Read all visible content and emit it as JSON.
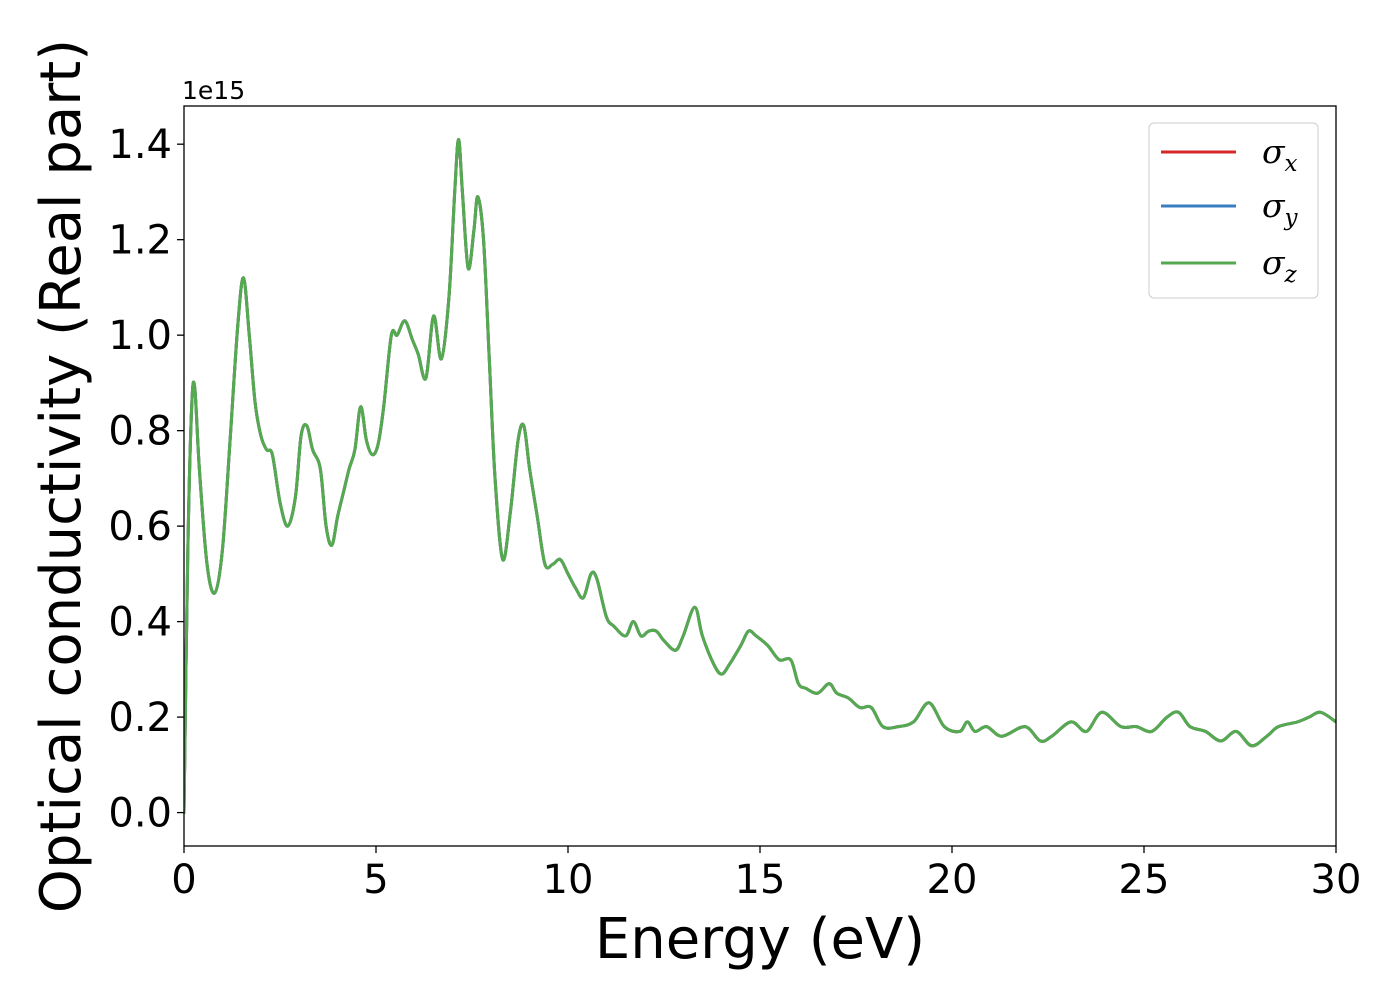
{
  "chart_data": {
    "type": "line",
    "xlabel": "Energy (eV)",
    "ylabel": "Optical conductivity (Real part)",
    "y_offset_text": "1e15",
    "xlim": [
      0,
      30
    ],
    "ylim": [
      -0.07,
      1.48
    ],
    "x_ticks": [
      0,
      5,
      10,
      15,
      20,
      25,
      30
    ],
    "x_tick_labels": [
      "0",
      "5",
      "10",
      "15",
      "20",
      "25",
      "30"
    ],
    "y_ticks": [
      0.0,
      0.2,
      0.4,
      0.6,
      0.8,
      1.0,
      1.2,
      1.4
    ],
    "y_tick_labels": [
      "0.0",
      "0.2",
      "0.4",
      "0.6",
      "0.8",
      "1.0",
      "1.2",
      "1.4"
    ],
    "grid": false,
    "legend_position": "top-right",
    "series": [
      {
        "name": "σx",
        "symbol": "σ",
        "subscript": "x",
        "color": "#d62728"
      },
      {
        "name": "σy",
        "symbol": "σ",
        "subscript": "y",
        "color": "#3a7dc0"
      },
      {
        "name": "σz",
        "symbol": "σ",
        "subscript": "z",
        "color": "#55aa50"
      }
    ],
    "x": [
      0,
      0.1,
      0.2,
      0.28,
      0.4,
      0.6,
      0.8,
      1.0,
      1.2,
      1.4,
      1.55,
      1.7,
      1.85,
      2.0,
      2.15,
      2.3,
      2.5,
      2.7,
      2.9,
      3.05,
      3.2,
      3.35,
      3.55,
      3.7,
      3.85,
      4.0,
      4.15,
      4.3,
      4.45,
      4.6,
      4.75,
      4.9,
      5.05,
      5.2,
      5.4,
      5.55,
      5.75,
      5.95,
      6.1,
      6.3,
      6.5,
      6.7,
      6.9,
      7.05,
      7.15,
      7.25,
      7.4,
      7.55,
      7.65,
      7.8,
      7.95,
      8.1,
      8.3,
      8.5,
      8.7,
      8.85,
      9.0,
      9.2,
      9.4,
      9.6,
      9.8,
      10.0,
      10.2,
      10.4,
      10.6,
      10.75,
      11.0,
      11.2,
      11.5,
      11.7,
      11.9,
      12.1,
      12.3,
      12.5,
      12.8,
      13.0,
      13.3,
      13.5,
      13.8,
      14.0,
      14.2,
      14.5,
      14.7,
      14.9,
      15.2,
      15.5,
      15.8,
      16.0,
      16.2,
      16.5,
      16.8,
      17.0,
      17.3,
      17.6,
      17.9,
      18.2,
      18.6,
      19.0,
      19.4,
      19.8,
      20.2,
      20.4,
      20.6,
      20.9,
      21.3,
      21.9,
      22.3,
      22.6,
      23.1,
      23.5,
      23.9,
      24.4,
      24.8,
      25.2,
      25.6,
      25.9,
      26.2,
      26.6,
      27.0,
      27.4,
      27.8,
      28.2,
      28.5,
      29.0,
      29.3,
      29.6,
      30.0
    ],
    "y": [
      0.0,
      0.55,
      0.85,
      0.89,
      0.72,
      0.52,
      0.46,
      0.55,
      0.78,
      1.02,
      1.12,
      1.0,
      0.86,
      0.79,
      0.76,
      0.75,
      0.65,
      0.6,
      0.66,
      0.79,
      0.81,
      0.76,
      0.72,
      0.6,
      0.56,
      0.62,
      0.67,
      0.72,
      0.76,
      0.85,
      0.78,
      0.75,
      0.77,
      0.85,
      1.0,
      1.0,
      1.03,
      0.99,
      0.96,
      0.91,
      1.04,
      0.95,
      1.08,
      1.3,
      1.41,
      1.3,
      1.14,
      1.22,
      1.29,
      1.2,
      0.95,
      0.7,
      0.53,
      0.63,
      0.78,
      0.81,
      0.72,
      0.62,
      0.52,
      0.52,
      0.53,
      0.5,
      0.47,
      0.45,
      0.5,
      0.49,
      0.41,
      0.39,
      0.37,
      0.4,
      0.37,
      0.38,
      0.38,
      0.36,
      0.34,
      0.37,
      0.43,
      0.37,
      0.31,
      0.29,
      0.31,
      0.35,
      0.38,
      0.37,
      0.35,
      0.32,
      0.32,
      0.27,
      0.26,
      0.25,
      0.27,
      0.25,
      0.24,
      0.22,
      0.22,
      0.18,
      0.18,
      0.19,
      0.23,
      0.18,
      0.17,
      0.19,
      0.17,
      0.18,
      0.16,
      0.18,
      0.15,
      0.16,
      0.19,
      0.17,
      0.21,
      0.18,
      0.18,
      0.17,
      0.2,
      0.21,
      0.18,
      0.17,
      0.15,
      0.17,
      0.14,
      0.16,
      0.18,
      0.19,
      0.2,
      0.21,
      0.19
    ]
  }
}
